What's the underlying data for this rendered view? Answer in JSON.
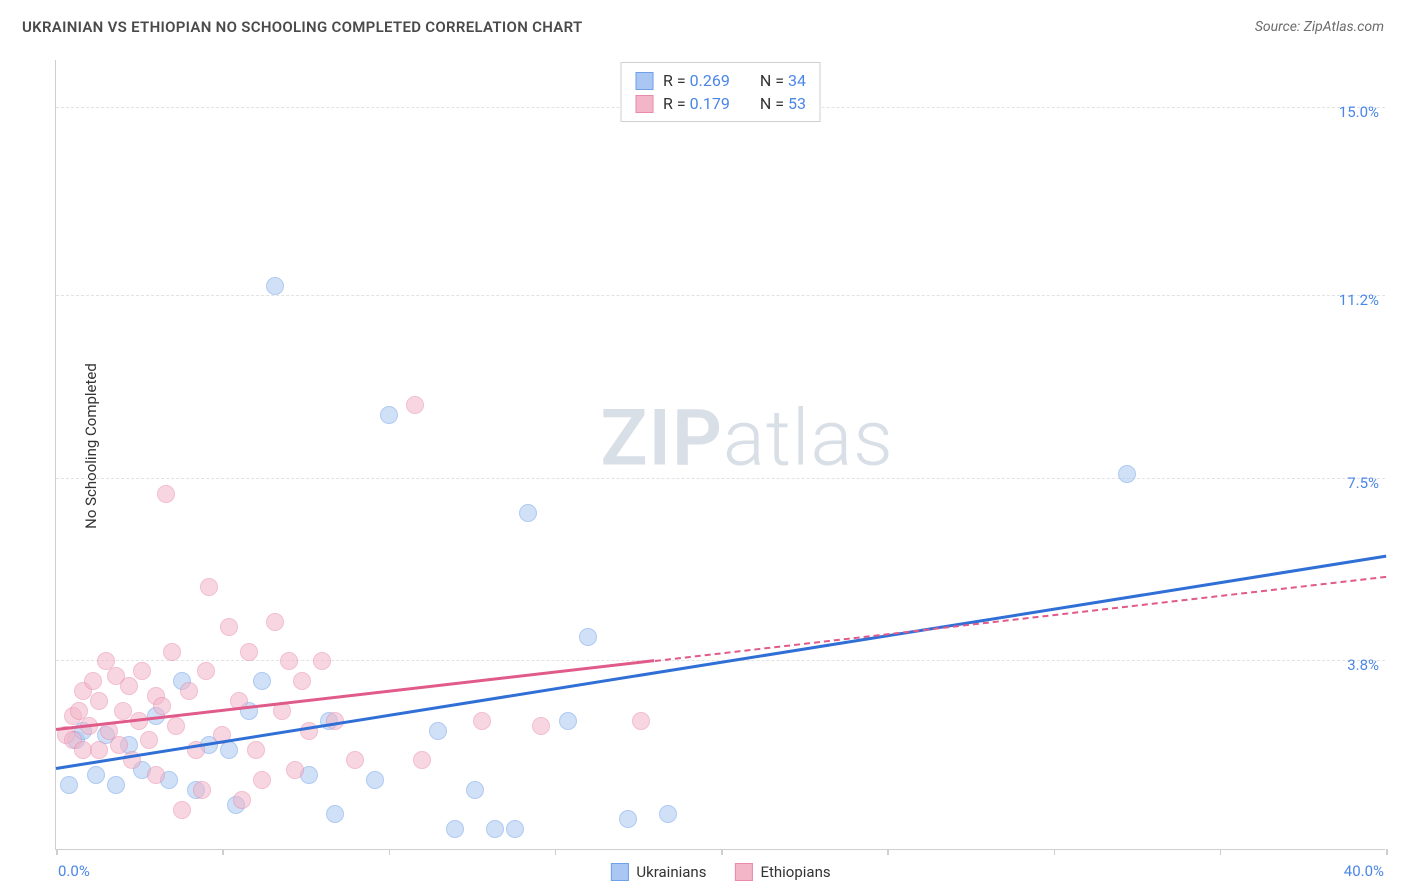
{
  "title": "UKRAINIAN VS ETHIOPIAN NO SCHOOLING COMPLETED CORRELATION CHART",
  "source": "Source: ZipAtlas.com",
  "yaxis_label": "No Schooling Completed",
  "watermark_bold": "ZIP",
  "watermark_light": "atlas",
  "chart": {
    "type": "scatter",
    "xlim": [
      0,
      40
    ],
    "ylim": [
      0,
      16
    ],
    "xaxis_min_label": "0.0%",
    "xaxis_max_label": "40.0%",
    "x_ticks": [
      0,
      5,
      10,
      15,
      20,
      25,
      30,
      35,
      40
    ],
    "y_gridlines": [
      3.8,
      7.5,
      11.2,
      15.0
    ],
    "y_tick_labels": [
      "3.8%",
      "7.5%",
      "11.2%",
      "15.0%"
    ],
    "background_color": "#ffffff",
    "grid_color": "#e2e2e2",
    "axis_color": "#cfcfcf",
    "tick_label_color": "#4a86e8",
    "point_radius": 9,
    "point_opacity": 0.55,
    "series": [
      {
        "name": "Ukrainians",
        "stroke": "#6fa0e8",
        "fill": "#a9c7f2",
        "trend_color": "#2f6fd6",
        "trend_width": 3,
        "R": "0.269",
        "N": "34",
        "trend": {
          "x1": 0,
          "y1": 1.6,
          "x2": 40,
          "y2": 5.9,
          "solid_until": 40
        },
        "points": [
          [
            0.4,
            1.3
          ],
          [
            0.6,
            2.2
          ],
          [
            0.8,
            2.4
          ],
          [
            1.2,
            1.5
          ],
          [
            1.5,
            2.3
          ],
          [
            1.8,
            1.3
          ],
          [
            2.2,
            2.1
          ],
          [
            2.6,
            1.6
          ],
          [
            3.0,
            2.7
          ],
          [
            3.4,
            1.4
          ],
          [
            3.8,
            3.4
          ],
          [
            4.2,
            1.2
          ],
          [
            4.6,
            2.1
          ],
          [
            5.2,
            2.0
          ],
          [
            5.4,
            0.9
          ],
          [
            5.8,
            2.8
          ],
          [
            6.2,
            3.4
          ],
          [
            6.6,
            11.4
          ],
          [
            7.6,
            1.5
          ],
          [
            8.2,
            2.6
          ],
          [
            8.4,
            0.7
          ],
          [
            9.6,
            1.4
          ],
          [
            10.0,
            8.8
          ],
          [
            11.5,
            2.4
          ],
          [
            12.0,
            0.4
          ],
          [
            12.6,
            1.2
          ],
          [
            13.2,
            0.4
          ],
          [
            13.8,
            0.4
          ],
          [
            14.2,
            6.8
          ],
          [
            15.4,
            2.6
          ],
          [
            16.0,
            4.3
          ],
          [
            17.2,
            0.6
          ],
          [
            18.4,
            0.7
          ],
          [
            32.2,
            7.6
          ]
        ]
      },
      {
        "name": "Ethiopians",
        "stroke": "#e88aa8",
        "fill": "#f3b6c9",
        "trend_color": "#e05a8a",
        "trend_width": 2.5,
        "R": "0.179",
        "N": "53",
        "trend": {
          "x1": 0,
          "y1": 2.4,
          "x2": 40,
          "y2": 5.5,
          "solid_until": 18
        },
        "points": [
          [
            0.3,
            2.3
          ],
          [
            0.5,
            2.7
          ],
          [
            0.5,
            2.2
          ],
          [
            0.7,
            2.8
          ],
          [
            0.8,
            2.0
          ],
          [
            0.8,
            3.2
          ],
          [
            1.0,
            2.5
          ],
          [
            1.1,
            3.4
          ],
          [
            1.3,
            2.0
          ],
          [
            1.3,
            3.0
          ],
          [
            1.5,
            3.8
          ],
          [
            1.6,
            2.4
          ],
          [
            1.8,
            3.5
          ],
          [
            1.9,
            2.1
          ],
          [
            2.0,
            2.8
          ],
          [
            2.2,
            3.3
          ],
          [
            2.3,
            1.8
          ],
          [
            2.5,
            2.6
          ],
          [
            2.6,
            3.6
          ],
          [
            2.8,
            2.2
          ],
          [
            3.0,
            3.1
          ],
          [
            3.0,
            1.5
          ],
          [
            3.2,
            2.9
          ],
          [
            3.3,
            7.2
          ],
          [
            3.5,
            4.0
          ],
          [
            3.6,
            2.5
          ],
          [
            3.8,
            0.8
          ],
          [
            4.0,
            3.2
          ],
          [
            4.2,
            2.0
          ],
          [
            4.4,
            1.2
          ],
          [
            4.5,
            3.6
          ],
          [
            4.6,
            5.3
          ],
          [
            5.0,
            2.3
          ],
          [
            5.2,
            4.5
          ],
          [
            5.5,
            3.0
          ],
          [
            5.6,
            1.0
          ],
          [
            5.8,
            4.0
          ],
          [
            6.0,
            2.0
          ],
          [
            6.2,
            1.4
          ],
          [
            6.6,
            4.6
          ],
          [
            6.8,
            2.8
          ],
          [
            7.0,
            3.8
          ],
          [
            7.2,
            1.6
          ],
          [
            7.4,
            3.4
          ],
          [
            7.6,
            2.4
          ],
          [
            8.0,
            3.8
          ],
          [
            8.4,
            2.6
          ],
          [
            9.0,
            1.8
          ],
          [
            10.8,
            9.0
          ],
          [
            11.0,
            1.8
          ],
          [
            12.8,
            2.6
          ],
          [
            14.6,
            2.5
          ],
          [
            17.6,
            2.6
          ]
        ]
      }
    ]
  },
  "legend_bottom": [
    {
      "label": "Ukrainians",
      "stroke": "#6fa0e8",
      "fill": "#a9c7f2"
    },
    {
      "label": "Ethiopians",
      "stroke": "#e88aa8",
      "fill": "#f3b6c9"
    }
  ]
}
